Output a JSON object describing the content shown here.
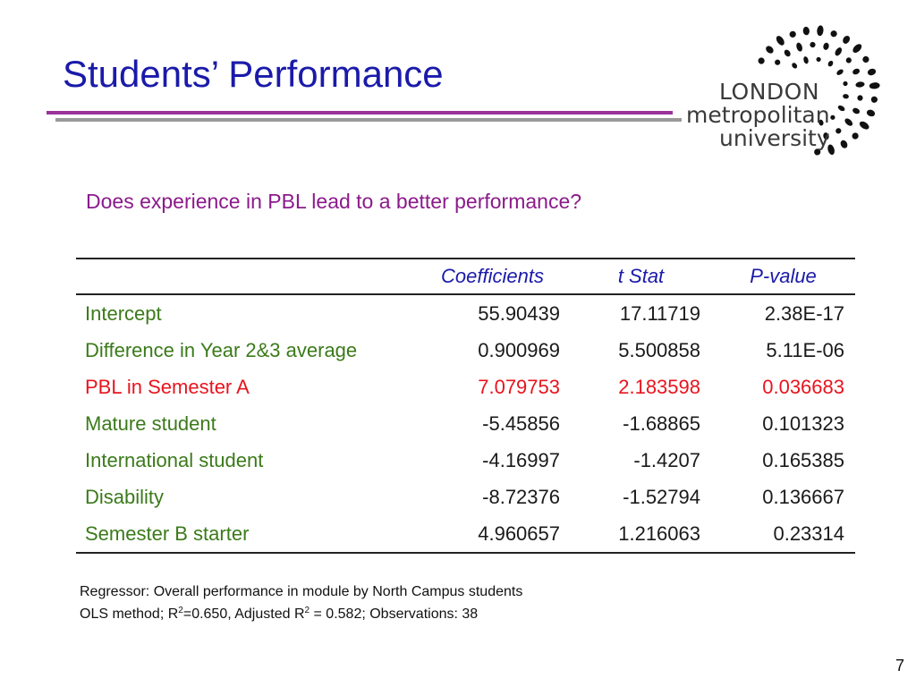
{
  "slide": {
    "title": "Students’ Performance",
    "question": "Does experience in PBL lead to a better performance?",
    "page_number": "7",
    "colors": {
      "title": "#1a1aaa",
      "question": "#8b1a8b",
      "header_text": "#1a1aaa",
      "row_green": "#3b7a1a",
      "row_red": "#e8141e",
      "rule_purple": "#993399",
      "rule_gray": "#999999"
    }
  },
  "logo": {
    "line1": "LONDON",
    "line2": "metropolitan",
    "line3": "university",
    "icon": "dot-arc-logo"
  },
  "table": {
    "headers": [
      "",
      "Coefficients",
      "t Stat",
      "P-value"
    ],
    "rows": [
      {
        "name": "Intercept",
        "coefficient": "55.90439",
        "t_stat": "17.11719",
        "p_value": "2.38E-17",
        "color": "#3b7a1a"
      },
      {
        "name": "Difference in Year 2&3 average",
        "coefficient": "0.900969",
        "t_stat": "5.500858",
        "p_value": "5.11E-06",
        "color": "#3b7a1a"
      },
      {
        "name": "PBL in Semester A",
        "coefficient": "7.079753",
        "t_stat": "2.183598",
        "p_value": "0.036683",
        "color": "#e8141e",
        "highlighted": true
      },
      {
        "name": "Mature student",
        "coefficient": "-5.45856",
        "t_stat": "-1.68865",
        "p_value": "0.101323",
        "color": "#3b7a1a"
      },
      {
        "name": "International student",
        "coefficient": "-4.16997",
        "t_stat": "-1.4207",
        "p_value": "0.165385",
        "color": "#3b7a1a"
      },
      {
        "name": "Disability",
        "coefficient": "-8.72376",
        "t_stat": "-1.52794",
        "p_value": "0.136667",
        "color": "#3b7a1a"
      },
      {
        "name": "Semester B starter",
        "coefficient": "4.960657",
        "t_stat": "1.216063",
        "p_value": "0.23314",
        "color": "#3b7a1a"
      }
    ]
  },
  "notes": {
    "line1": "Regressor: Overall performance in module by North Campus students",
    "line2_a": "OLS method; R",
    "line2_sup1": "2",
    "line2_b": "=0.650, Adjusted R",
    "line2_sup2": "2",
    "line2_c": " = 0.582; Observations: 38"
  }
}
